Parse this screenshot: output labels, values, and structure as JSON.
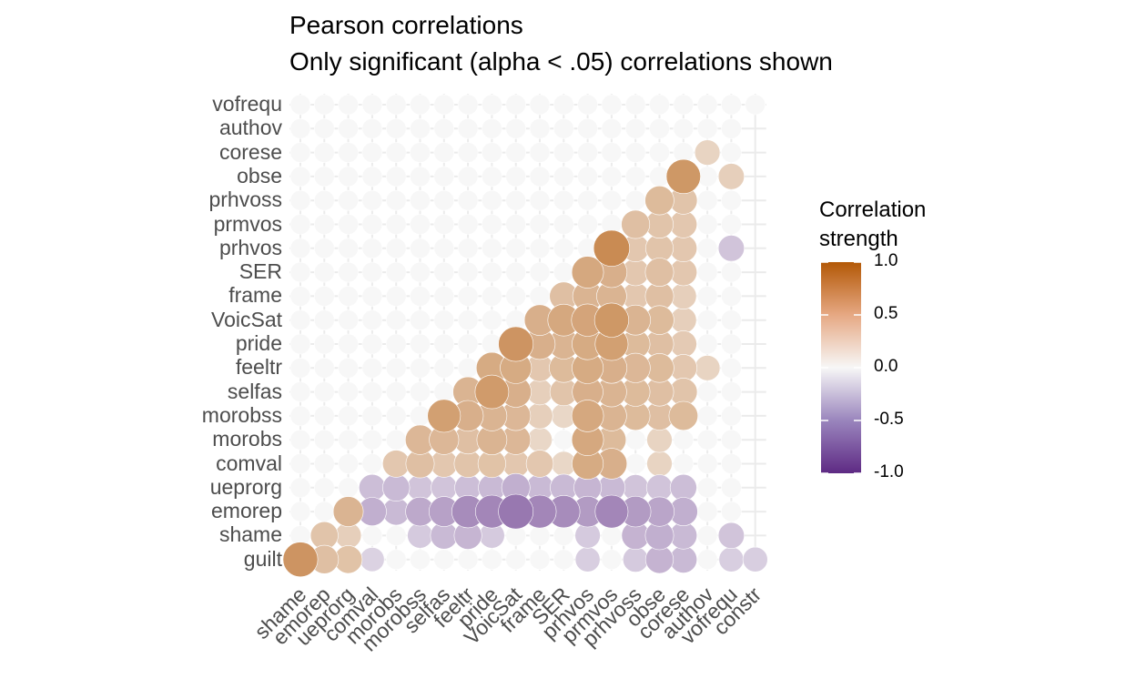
{
  "chart_data": {
    "type": "heatmap",
    "title": "Pearson correlations",
    "subtitle": "Only significant (alpha < .05) correlations shown",
    "x_labels": [
      "shame",
      "emorep",
      "ueprorg",
      "comval",
      "morobs",
      "morobss",
      "selfas",
      "feeltr",
      "pride",
      "VoicSat",
      "frame",
      "SER",
      "prhvos",
      "prmvos",
      "prhvoss",
      "obse",
      "corese",
      "authov",
      "vofrequ",
      "constr"
    ],
    "y_labels": [
      "guilt",
      "shame",
      "emorep",
      "ueprorg",
      "comval",
      "morobs",
      "morobss",
      "selfas",
      "feeltr",
      "pride",
      "VoicSat",
      "frame",
      "SER",
      "prhvos",
      "prmvos",
      "prhvoss",
      "obse",
      "corese",
      "authov",
      "vofrequ"
    ],
    "legend": {
      "title_line1": "Correlation",
      "title_line2": "strength",
      "ticks": [
        "1.0",
        "0.5",
        "0.0",
        "-0.5",
        "-1.0"
      ],
      "low_color": "#5e2a84",
      "mid_color": "#f7f7f7",
      "high_color": "#b35806",
      "limits": [
        -1,
        1
      ]
    },
    "rows": [
      [
        0.62,
        0.35,
        0.33,
        -0.18,
        0,
        0,
        0,
        0,
        0,
        0,
        0,
        0,
        -0.2,
        0,
        -0.22,
        -0.33,
        -0.3,
        0,
        -0.2,
        -0.2
      ],
      [
        0,
        0.32,
        0.25,
        0,
        0,
        -0.22,
        -0.3,
        -0.32,
        -0.22,
        0,
        0,
        0,
        -0.22,
        0,
        -0.33,
        -0.35,
        -0.3,
        0,
        -0.25,
        null
      ],
      [
        0,
        0,
        0.42,
        -0.35,
        -0.3,
        -0.38,
        -0.42,
        -0.52,
        -0.55,
        -0.62,
        -0.55,
        -0.52,
        -0.45,
        -0.55,
        -0.45,
        -0.4,
        -0.35,
        0,
        0,
        null
      ],
      [
        0,
        0,
        0,
        -0.28,
        -0.3,
        -0.25,
        -0.25,
        -0.28,
        -0.3,
        -0.35,
        -0.3,
        -0.3,
        -0.32,
        -0.3,
        -0.25,
        -0.25,
        -0.28,
        0,
        0,
        null
      ],
      [
        0,
        0,
        0,
        0,
        0.3,
        0.35,
        0.3,
        0.32,
        0.33,
        0.3,
        0.3,
        0.2,
        0.48,
        0.45,
        0,
        0.22,
        0,
        0,
        0,
        null
      ],
      [
        0,
        0,
        0,
        0,
        0,
        0.4,
        0.4,
        0.35,
        0.42,
        0.4,
        0.2,
        0,
        0.5,
        0.38,
        0,
        0.22,
        0,
        0,
        0,
        null
      ],
      [
        0,
        0,
        0,
        0,
        0,
        0,
        0.55,
        0.45,
        0.42,
        0.4,
        0.25,
        0.2,
        0.5,
        0.42,
        0.38,
        0.35,
        0.38,
        0,
        0,
        null
      ],
      [
        0,
        0,
        0,
        0,
        0,
        0,
        0,
        0.42,
        0.58,
        0.45,
        0.25,
        0.32,
        0.45,
        0.42,
        0.38,
        0.35,
        0.32,
        0,
        0,
        null
      ],
      [
        0,
        0,
        0,
        0,
        0,
        0,
        0,
        0,
        0.48,
        0.48,
        0.3,
        0.38,
        0.48,
        0.45,
        0.4,
        0.38,
        0.3,
        0.22,
        0,
        null
      ],
      [
        0,
        0,
        0,
        0,
        0,
        0,
        0,
        0,
        0,
        0.62,
        0.45,
        0.42,
        0.48,
        0.55,
        0.38,
        0.35,
        0.28,
        0,
        0,
        null
      ],
      [
        0,
        0,
        0,
        0,
        0,
        0,
        0,
        0,
        0,
        0,
        0.45,
        0.5,
        0.52,
        0.6,
        0.42,
        0.38,
        0.25,
        0,
        0,
        null
      ],
      [
        0,
        0,
        0,
        0,
        0,
        0,
        0,
        0,
        0,
        0,
        0,
        0.35,
        0.42,
        0.42,
        0.3,
        0.35,
        0.25,
        0,
        0,
        null
      ],
      [
        0,
        0,
        0,
        0,
        0,
        0,
        0,
        0,
        0,
        0,
        0,
        0,
        0.5,
        0.45,
        0.3,
        0.35,
        0.3,
        0,
        0,
        null
      ],
      [
        0,
        0,
        0,
        0,
        0,
        0,
        0,
        0,
        0,
        0,
        0,
        0,
        0,
        0.68,
        0.3,
        0.32,
        0.3,
        0,
        -0.25,
        null
      ],
      [
        0,
        0,
        0,
        0,
        0,
        0,
        0,
        0,
        0,
        0,
        0,
        0,
        0,
        0,
        0.35,
        0.32,
        0.3,
        0,
        0,
        null
      ],
      [
        0,
        0,
        0,
        0,
        0,
        0,
        0,
        0,
        0,
        0,
        0,
        0,
        0,
        0,
        0,
        0.38,
        0.32,
        0,
        0,
        null
      ],
      [
        0,
        0,
        0,
        0,
        0,
        0,
        0,
        0,
        0,
        0,
        0,
        0,
        0,
        0,
        0,
        0,
        0.6,
        0,
        0.25,
        null
      ],
      [
        0,
        0,
        0,
        0,
        0,
        0,
        0,
        0,
        0,
        0,
        0,
        0,
        0,
        0,
        0,
        0,
        0,
        0.22,
        0,
        null
      ],
      [
        0,
        0,
        0,
        0,
        0,
        0,
        0,
        0,
        0,
        0,
        0,
        0,
        0,
        0,
        0,
        0,
        0,
        0,
        0,
        null
      ],
      [
        0,
        0,
        0,
        0,
        0,
        0,
        0,
        0,
        0,
        0,
        0,
        0,
        0,
        0,
        0,
        0,
        0,
        0,
        0,
        0
      ]
    ]
  }
}
